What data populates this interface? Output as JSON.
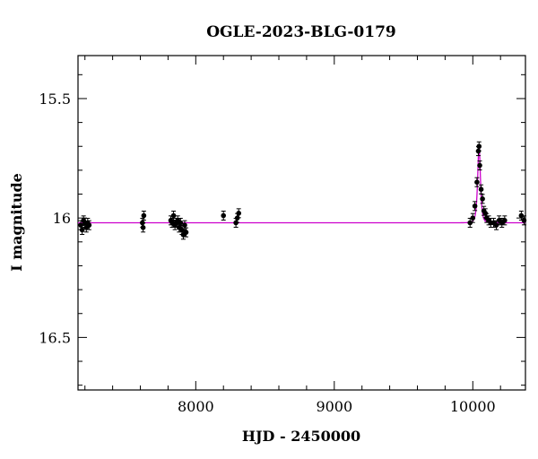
{
  "chart_data": {
    "type": "scatter",
    "title": "OGLE-2023-BLG-0179",
    "xlabel": "HJD - 2450000",
    "ylabel": "I magnitude",
    "xlim": [
      7150,
      10380
    ],
    "ylim": [
      16.72,
      15.32
    ],
    "y_inverted": true,
    "x_ticks": [
      8000,
      9000,
      10000
    ],
    "x_tick_labels": [
      "8000",
      "9000",
      "10000"
    ],
    "y_ticks": [
      15.5,
      16,
      16.5
    ],
    "y_tick_labels": [
      "15.5",
      "16",
      "16.5"
    ],
    "grid": false,
    "legend": "none",
    "colors": {
      "points": "#000000",
      "model": "#cc00cc"
    },
    "model": {
      "baseline_mag": 16.02,
      "peak_hjd": 10045,
      "peak_mag": 15.7,
      "tE_days": 12
    },
    "series": [
      {
        "values": [
          [
            7170,
            16.03
          ],
          [
            7180,
            16.05
          ],
          [
            7190,
            16.01
          ],
          [
            7200,
            16.02
          ],
          [
            7210,
            16.04
          ],
          [
            7220,
            16.02
          ],
          [
            7230,
            16.03
          ],
          [
            7615,
            16.02
          ],
          [
            7620,
            16.04
          ],
          [
            7625,
            15.99
          ],
          [
            7820,
            16.01
          ],
          [
            7830,
            16.02
          ],
          [
            7840,
            15.99
          ],
          [
            7850,
            16.03
          ],
          [
            7860,
            16.02
          ],
          [
            7870,
            16.01
          ],
          [
            7880,
            16.04
          ],
          [
            7890,
            16.02
          ],
          [
            7900,
            16.05
          ],
          [
            7910,
            16.07
          ],
          [
            7920,
            16.03
          ],
          [
            7930,
            16.06
          ],
          [
            8200,
            15.99
          ],
          [
            8290,
            16.02
          ],
          [
            8300,
            16.0
          ],
          [
            8310,
            15.98
          ],
          [
            9980,
            16.02
          ],
          [
            10000,
            16.0
          ],
          [
            10015,
            15.95
          ],
          [
            10030,
            15.85
          ],
          [
            10040,
            15.72
          ],
          [
            10045,
            15.7
          ],
          [
            10050,
            15.78
          ],
          [
            10060,
            15.88
          ],
          [
            10070,
            15.92
          ],
          [
            10080,
            15.97
          ],
          [
            10090,
            15.98
          ],
          [
            10100,
            16.0
          ],
          [
            10115,
            16.01
          ],
          [
            10130,
            16.02
          ],
          [
            10150,
            16.02
          ],
          [
            10170,
            16.03
          ],
          [
            10190,
            16.01
          ],
          [
            10210,
            16.02
          ],
          [
            10230,
            16.01
          ],
          [
            10350,
            15.99
          ],
          [
            10370,
            16.01
          ]
        ]
      }
    ]
  }
}
